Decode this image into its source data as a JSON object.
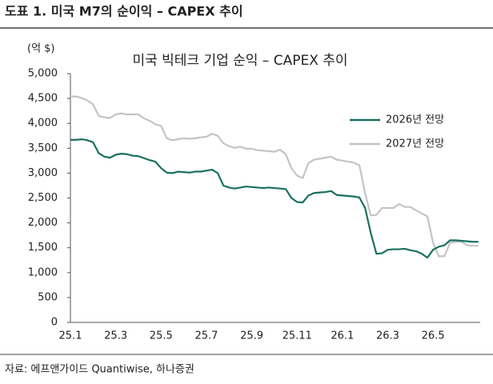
{
  "header": {
    "title": "도표 1. 미국 M7의 순이익 – CAPEX 추이"
  },
  "source": "자료: 에프앤가이드 Quantiwise, 하나증권",
  "chart_data": {
    "type": "line",
    "title": "미국 빅테크 기업 순익 – CAPEX 추이",
    "y_label": "(억 $)",
    "categories": [
      "25.1",
      null,
      null,
      null,
      null,
      null,
      null,
      null,
      "25.3",
      null,
      null,
      null,
      null,
      null,
      null,
      null,
      "25.5",
      null,
      null,
      null,
      null,
      null,
      null,
      null,
      "25.7",
      null,
      null,
      null,
      null,
      null,
      null,
      null,
      "25.9",
      null,
      null,
      null,
      null,
      null,
      null,
      null,
      "25.11",
      null,
      null,
      null,
      null,
      null,
      null,
      null,
      "26.1",
      null,
      null,
      null,
      null,
      null,
      null,
      null,
      "26.3",
      null,
      null,
      null,
      null,
      null,
      null,
      null,
      "26.5",
      null,
      null,
      null,
      null,
      null,
      null,
      null,
      null
    ],
    "series": [
      {
        "name": "2026년 전망",
        "color": "#1a7060",
        "values": [
          3670,
          3670,
          3680,
          3660,
          3620,
          3400,
          3330,
          3310,
          3370,
          3390,
          3380,
          3350,
          3340,
          3300,
          3260,
          3230,
          3100,
          3010,
          3000,
          3030,
          3020,
          3010,
          3030,
          3030,
          3050,
          3070,
          3000,
          2750,
          2710,
          2690,
          2710,
          2730,
          2720,
          2710,
          2700,
          2710,
          2700,
          2690,
          2680,
          2500,
          2420,
          2410,
          2550,
          2600,
          2610,
          2620,
          2640,
          2560,
          2550,
          2540,
          2530,
          2510,
          2300,
          1800,
          1380,
          1390,
          1460,
          1470,
          1470,
          1480,
          1450,
          1430,
          1380,
          1300,
          1460,
          1520,
          1550,
          1650,
          1650,
          1640,
          1630,
          1620,
          1620
        ]
      },
      {
        "name": "2027년 전망",
        "color": "#c4c4c4",
        "values": [
          4540,
          4540,
          4510,
          4460,
          4380,
          4150,
          4120,
          4110,
          4180,
          4200,
          4180,
          4180,
          4180,
          4100,
          4050,
          3980,
          3950,
          3700,
          3660,
          3680,
          3700,
          3690,
          3700,
          3720,
          3730,
          3790,
          3750,
          3600,
          3540,
          3510,
          3530,
          3490,
          3490,
          3460,
          3450,
          3440,
          3430,
          3470,
          3380,
          3100,
          2950,
          2900,
          3200,
          3270,
          3290,
          3310,
          3330,
          3270,
          3250,
          3230,
          3210,
          3160,
          2600,
          2150,
          2160,
          2300,
          2300,
          2300,
          2380,
          2320,
          2320,
          2250,
          2190,
          2130,
          1600,
          1330,
          1330,
          1600,
          1620,
          1620,
          1550,
          1540,
          1540
        ]
      }
    ],
    "ylim": [
      0,
      5000
    ],
    "yticks": [
      0,
      500,
      {
        "value": 1000,
        "label": "1,000"
      },
      {
        "value": 1500,
        "label": "1,500"
      },
      {
        "value": 2000,
        "label": "2,000"
      },
      {
        "value": 2500,
        "label": "2,500"
      },
      {
        "value": 3000,
        "label": "3,000"
      },
      {
        "value": 3500,
        "label": "3,500"
      },
      {
        "value": 4000,
        "label": "4,000"
      },
      {
        "value": 4500,
        "label": "4,500"
      },
      {
        "value": 5000,
        "label": "5,000"
      }
    ],
    "grid": false,
    "legend": "right"
  }
}
